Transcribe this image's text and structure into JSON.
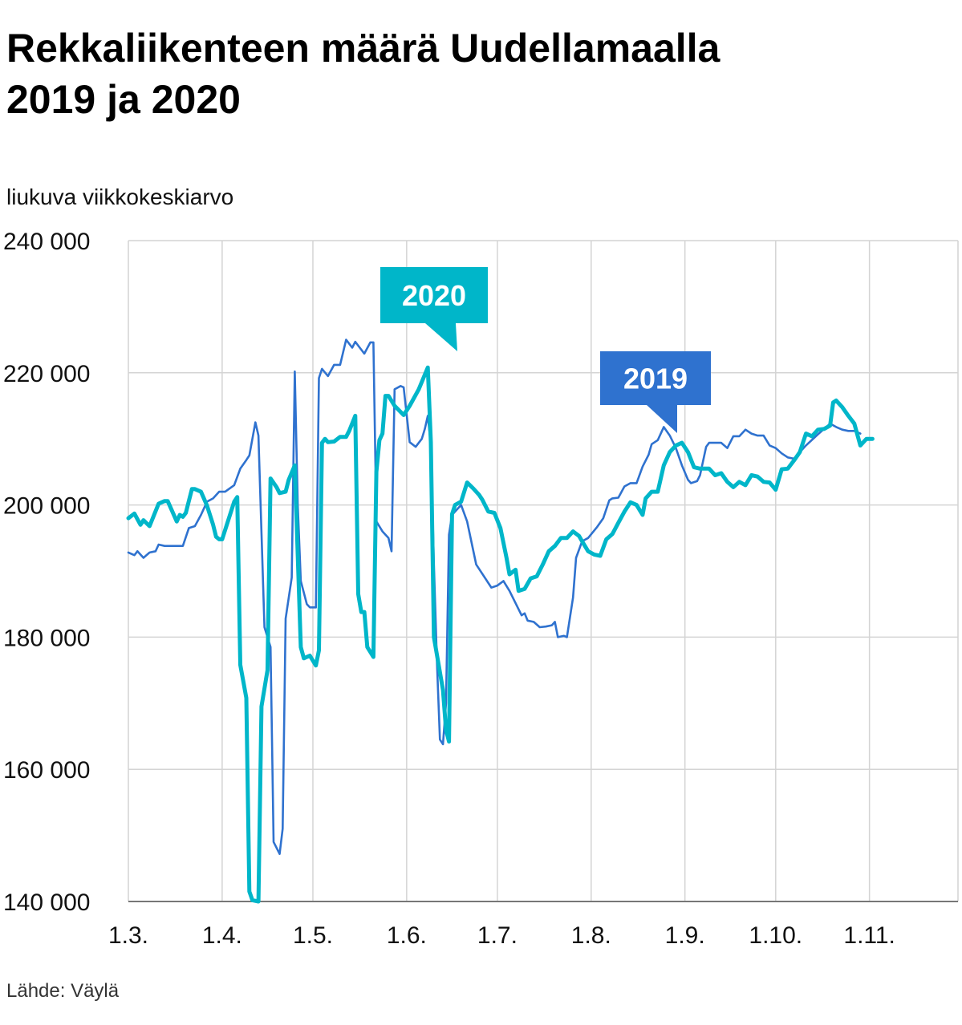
{
  "title_line1": "Rekkaliikenteen määrä Uudellamaalla",
  "title_line2": "2019 ja 2020",
  "subtitle": "liukuva viikkokeskiarvo",
  "source": "Lähde: Väylä",
  "colors": {
    "s2019": "#2f72cf",
    "s2020": "#00b6c9",
    "grid": "#d4d4d4",
    "axis": "#777777"
  },
  "chart_data": {
    "type": "line",
    "ylabel": "liukuva viikkokeskiarvo",
    "ylim": [
      140000,
      240000
    ],
    "xlim": [
      0,
      270
    ],
    "y_ticks": [
      {
        "value": 240000,
        "label": "240 000"
      },
      {
        "value": 220000,
        "label": "220 000"
      },
      {
        "value": 200000,
        "label": "200 000"
      },
      {
        "value": 180000,
        "label": "180 000"
      },
      {
        "value": 160000,
        "label": "160 000"
      },
      {
        "value": 140000,
        "label": "140 000"
      }
    ],
    "x_ticks": [
      {
        "day": 0,
        "label": "1.3."
      },
      {
        "day": 31,
        "label": "1.4."
      },
      {
        "day": 61,
        "label": "1.5."
      },
      {
        "day": 92,
        "label": "1.6."
      },
      {
        "day": 122,
        "label": "1.7."
      },
      {
        "day": 153,
        "label": "1.8."
      },
      {
        "day": 184,
        "label": "1.9."
      },
      {
        "day": 214,
        "label": "1.10."
      },
      {
        "day": 245,
        "label": "1.11."
      }
    ],
    "series": [
      {
        "name": "2019",
        "color": "#2f72cf",
        "points": [
          [
            0,
            192800
          ],
          [
            2,
            192400
          ],
          [
            3,
            193000
          ],
          [
            5,
            192000
          ],
          [
            7,
            192800
          ],
          [
            9,
            193000
          ],
          [
            10,
            194000
          ],
          [
            12,
            193800
          ],
          [
            18,
            193800
          ],
          [
            20,
            196500
          ],
          [
            22,
            196800
          ],
          [
            24,
            198500
          ],
          [
            26,
            200500
          ],
          [
            28,
            201000
          ],
          [
            30,
            202000
          ],
          [
            32,
            202000
          ],
          [
            35,
            203000
          ],
          [
            37,
            205500
          ],
          [
            39,
            206800
          ],
          [
            40,
            207500
          ],
          [
            42,
            212500
          ],
          [
            43,
            210500
          ],
          [
            45,
            181500
          ],
          [
            47,
            178500
          ],
          [
            48,
            149000
          ],
          [
            50,
            147200
          ],
          [
            51,
            151000
          ],
          [
            52,
            182800
          ],
          [
            54,
            189000
          ],
          [
            55,
            220200
          ],
          [
            56,
            200000
          ],
          [
            57,
            188500
          ],
          [
            59,
            185000
          ],
          [
            60,
            184500
          ],
          [
            62,
            184500
          ],
          [
            63,
            219200
          ],
          [
            64,
            220600
          ],
          [
            66,
            219500
          ],
          [
            68,
            221200
          ],
          [
            70,
            221200
          ],
          [
            72,
            225000
          ],
          [
            74,
            223800
          ],
          [
            75,
            224700
          ],
          [
            77,
            223500
          ],
          [
            78,
            222900
          ],
          [
            80,
            224600
          ],
          [
            81,
            224600
          ],
          [
            82,
            197500
          ],
          [
            84,
            196000
          ],
          [
            86,
            195000
          ],
          [
            87,
            193000
          ],
          [
            88,
            217500
          ],
          [
            90,
            218000
          ],
          [
            91,
            217800
          ],
          [
            93,
            209500
          ],
          [
            95,
            208800
          ],
          [
            97,
            210000
          ],
          [
            98,
            211500
          ],
          [
            99,
            213500
          ],
          [
            100,
            209000
          ],
          [
            101,
            191000
          ],
          [
            102,
            176500
          ],
          [
            103,
            164500
          ],
          [
            104,
            163800
          ],
          [
            105,
            170000
          ],
          [
            106,
            195500
          ],
          [
            107,
            198500
          ],
          [
            110,
            200000
          ],
          [
            112,
            197500
          ],
          [
            115,
            191000
          ],
          [
            120,
            187500
          ],
          [
            122,
            187800
          ],
          [
            124,
            188500
          ],
          [
            126,
            187000
          ],
          [
            130,
            183300
          ],
          [
            131,
            183600
          ],
          [
            132,
            182500
          ],
          [
            134,
            182300
          ],
          [
            136,
            181500
          ],
          [
            138,
            181600
          ],
          [
            140,
            181800
          ],
          [
            141,
            182300
          ],
          [
            142,
            180000
          ],
          [
            144,
            180200
          ],
          [
            145,
            180000
          ],
          [
            147,
            186000
          ],
          [
            148,
            192000
          ],
          [
            150,
            194500
          ],
          [
            152,
            195000
          ],
          [
            155,
            196700
          ],
          [
            157,
            198000
          ],
          [
            159,
            200700
          ],
          [
            160,
            201000
          ],
          [
            162,
            201100
          ],
          [
            164,
            202800
          ],
          [
            166,
            203300
          ],
          [
            168,
            203300
          ],
          [
            170,
            205800
          ],
          [
            172,
            207600
          ],
          [
            173,
            209200
          ],
          [
            175,
            209800
          ],
          [
            177,
            211800
          ],
          [
            179,
            210500
          ],
          [
            181,
            208600
          ],
          [
            183,
            206000
          ],
          [
            185,
            203800
          ],
          [
            186,
            203300
          ],
          [
            188,
            203600
          ],
          [
            189,
            204500
          ],
          [
            191,
            208800
          ],
          [
            192,
            209400
          ],
          [
            194,
            209400
          ],
          [
            196,
            209400
          ],
          [
            198,
            208600
          ],
          [
            200,
            210400
          ],
          [
            202,
            210400
          ],
          [
            204,
            211400
          ],
          [
            206,
            210800
          ],
          [
            208,
            210500
          ],
          [
            210,
            210500
          ],
          [
            212,
            209000
          ],
          [
            214,
            208600
          ],
          [
            216,
            207800
          ],
          [
            218,
            207200
          ],
          [
            220,
            207000
          ],
          [
            222,
            208000
          ],
          [
            224,
            209000
          ],
          [
            228,
            210700
          ],
          [
            230,
            211500
          ],
          [
            232,
            212300
          ],
          [
            234,
            211800
          ],
          [
            236,
            211400
          ],
          [
            238,
            211200
          ],
          [
            240,
            211200
          ],
          [
            242,
            210800
          ]
        ]
      },
      {
        "name": "2020",
        "color": "#00b6c9",
        "points": [
          [
            0,
            198000
          ],
          [
            2,
            198700
          ],
          [
            4,
            197000
          ],
          [
            5,
            197700
          ],
          [
            7,
            196800
          ],
          [
            10,
            200200
          ],
          [
            12,
            200600
          ],
          [
            13,
            200600
          ],
          [
            16,
            197500
          ],
          [
            17,
            198500
          ],
          [
            18,
            198200
          ],
          [
            19,
            198800
          ],
          [
            21,
            202400
          ],
          [
            22,
            202400
          ],
          [
            24,
            202000
          ],
          [
            26,
            199900
          ],
          [
            28,
            197000
          ],
          [
            29,
            195200
          ],
          [
            30,
            194800
          ],
          [
            31,
            194800
          ],
          [
            35,
            200500
          ],
          [
            36,
            201200
          ],
          [
            37,
            175800
          ],
          [
            39,
            170800
          ],
          [
            40,
            141500
          ],
          [
            41,
            140200
          ],
          [
            43,
            140000
          ],
          [
            44,
            169500
          ],
          [
            46,
            175000
          ],
          [
            47,
            204000
          ],
          [
            49,
            202700
          ],
          [
            50,
            201800
          ],
          [
            52,
            202000
          ],
          [
            53,
            203800
          ],
          [
            55,
            206000
          ],
          [
            57,
            178500
          ],
          [
            58,
            176800
          ],
          [
            60,
            177200
          ],
          [
            62,
            175700
          ],
          [
            63,
            178000
          ],
          [
            64,
            209400
          ],
          [
            65,
            210000
          ],
          [
            66,
            209500
          ],
          [
            68,
            209600
          ],
          [
            70,
            210300
          ],
          [
            72,
            210300
          ],
          [
            73,
            211200
          ],
          [
            75,
            213500
          ],
          [
            76,
            186500
          ],
          [
            77,
            183800
          ],
          [
            78,
            183800
          ],
          [
            79,
            178500
          ],
          [
            81,
            177000
          ],
          [
            82,
            205000
          ],
          [
            83,
            209800
          ],
          [
            84,
            210800
          ],
          [
            85,
            216500
          ],
          [
            86,
            216500
          ],
          [
            88,
            215000
          ],
          [
            91,
            213600
          ],
          [
            93,
            215000
          ],
          [
            96,
            217500
          ],
          [
            99,
            220800
          ],
          [
            100,
            209500
          ],
          [
            101,
            180000
          ],
          [
            104,
            172000
          ],
          [
            105,
            166000
          ],
          [
            106,
            164200
          ],
          [
            107,
            198600
          ],
          [
            108,
            200000
          ],
          [
            110,
            200500
          ],
          [
            112,
            203400
          ],
          [
            114,
            202500
          ],
          [
            116,
            201500
          ],
          [
            117,
            200800
          ],
          [
            119,
            199000
          ],
          [
            121,
            198800
          ],
          [
            123,
            196500
          ],
          [
            125,
            192000
          ],
          [
            126,
            189500
          ],
          [
            128,
            190200
          ],
          [
            129,
            187000
          ],
          [
            131,
            187300
          ],
          [
            133,
            188900
          ],
          [
            135,
            189200
          ],
          [
            137,
            191000
          ],
          [
            139,
            193000
          ],
          [
            141,
            193800
          ],
          [
            143,
            195000
          ],
          [
            145,
            195000
          ],
          [
            147,
            196000
          ],
          [
            149,
            195300
          ],
          [
            150,
            194500
          ],
          [
            152,
            193000
          ],
          [
            154,
            192500
          ],
          [
            156,
            192300
          ],
          [
            158,
            194800
          ],
          [
            160,
            195600
          ],
          [
            162,
            197300
          ],
          [
            164,
            199000
          ],
          [
            166,
            200400
          ],
          [
            168,
            200000
          ],
          [
            170,
            198500
          ],
          [
            171,
            201000
          ],
          [
            173,
            202000
          ],
          [
            175,
            202000
          ],
          [
            177,
            206000
          ],
          [
            179,
            208000
          ],
          [
            181,
            209000
          ],
          [
            183,
            209400
          ],
          [
            185,
            208000
          ],
          [
            187,
            205700
          ],
          [
            189,
            205500
          ],
          [
            192,
            205500
          ],
          [
            194,
            204500
          ],
          [
            196,
            204800
          ],
          [
            198,
            203500
          ],
          [
            200,
            202700
          ],
          [
            202,
            203500
          ],
          [
            204,
            203000
          ],
          [
            206,
            204500
          ],
          [
            208,
            204300
          ],
          [
            210,
            203500
          ],
          [
            212,
            203400
          ],
          [
            214,
            202300
          ],
          [
            216,
            205400
          ],
          [
            218,
            205500
          ],
          [
            220,
            206700
          ],
          [
            222,
            208000
          ],
          [
            224,
            210800
          ],
          [
            226,
            210400
          ],
          [
            228,
            211400
          ],
          [
            230,
            211500
          ],
          [
            232,
            212000
          ],
          [
            233,
            215500
          ],
          [
            234,
            215800
          ],
          [
            236,
            214800
          ],
          [
            238,
            213500
          ],
          [
            240,
            212300
          ],
          [
            242,
            209000
          ],
          [
            244,
            210000
          ],
          [
            246,
            210000
          ]
        ]
      }
    ],
    "annotations": [
      {
        "series": "2020",
        "text": "2020"
      },
      {
        "series": "2019",
        "text": "2019"
      }
    ]
  }
}
